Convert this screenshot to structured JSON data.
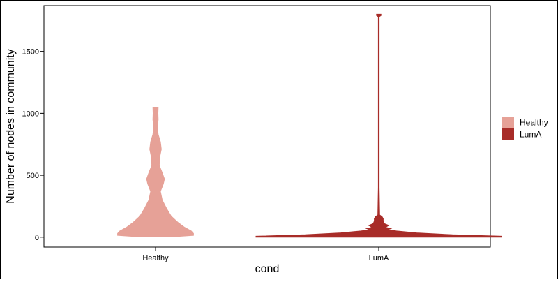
{
  "chart_data": {
    "type": "violin",
    "xlabel": "cond",
    "ylabel": "Number of nodes in community",
    "categories": [
      "Healthy",
      "LumA"
    ],
    "ylim": [
      -80,
      1870
    ],
    "yticks": [
      0,
      500,
      1000,
      1500
    ],
    "grid": false,
    "legend": {
      "placement": "right",
      "entries": [
        {
          "label": "Healthy",
          "color": "#e6a197"
        },
        {
          "label": "LumA",
          "color": "#a82c28"
        }
      ]
    },
    "series": [
      {
        "name": "Healthy",
        "color": "#e6a197",
        "min": 5,
        "max": 1050,
        "density_profile": [
          {
            "y": 5,
            "half_width": 0.09
          },
          {
            "y": 15,
            "half_width": 0.17
          },
          {
            "y": 30,
            "half_width": 0.17
          },
          {
            "y": 50,
            "half_width": 0.16
          },
          {
            "y": 80,
            "half_width": 0.13
          },
          {
            "y": 120,
            "half_width": 0.1
          },
          {
            "y": 170,
            "half_width": 0.07
          },
          {
            "y": 230,
            "half_width": 0.05
          },
          {
            "y": 300,
            "half_width": 0.03
          },
          {
            "y": 370,
            "half_width": 0.022
          },
          {
            "y": 430,
            "half_width": 0.035
          },
          {
            "y": 470,
            "half_width": 0.04
          },
          {
            "y": 520,
            "half_width": 0.03
          },
          {
            "y": 580,
            "half_width": 0.017
          },
          {
            "y": 640,
            "half_width": 0.018
          },
          {
            "y": 710,
            "half_width": 0.026
          },
          {
            "y": 770,
            "half_width": 0.022
          },
          {
            "y": 830,
            "half_width": 0.012
          },
          {
            "y": 880,
            "half_width": 0.008
          },
          {
            "y": 950,
            "half_width": 0.012
          },
          {
            "y": 1000,
            "half_width": 0.011
          },
          {
            "y": 1050,
            "half_width": 0.012
          }
        ]
      },
      {
        "name": "LumA",
        "color": "#a82c28",
        "min": 0,
        "max": 1800,
        "density_profile": [
          {
            "y": 0,
            "half_width": 0.55
          },
          {
            "y": 8,
            "half_width": 0.55
          },
          {
            "y": 20,
            "half_width": 0.33
          },
          {
            "y": 35,
            "half_width": 0.17
          },
          {
            "y": 50,
            "half_width": 0.08
          },
          {
            "y": 60,
            "half_width": 0.04
          },
          {
            "y": 70,
            "half_width": 0.055
          },
          {
            "y": 80,
            "half_width": 0.03
          },
          {
            "y": 95,
            "half_width": 0.045
          },
          {
            "y": 110,
            "half_width": 0.025
          },
          {
            "y": 130,
            "half_width": 0.02
          },
          {
            "y": 150,
            "half_width": 0.02
          },
          {
            "y": 165,
            "half_width": 0.015
          },
          {
            "y": 180,
            "half_width": 0.004
          },
          {
            "y": 400,
            "half_width": 0.002
          },
          {
            "y": 1780,
            "half_width": 0.002
          },
          {
            "y": 1790,
            "half_width": 0.01
          },
          {
            "y": 1800,
            "half_width": 0.01
          }
        ]
      }
    ]
  }
}
